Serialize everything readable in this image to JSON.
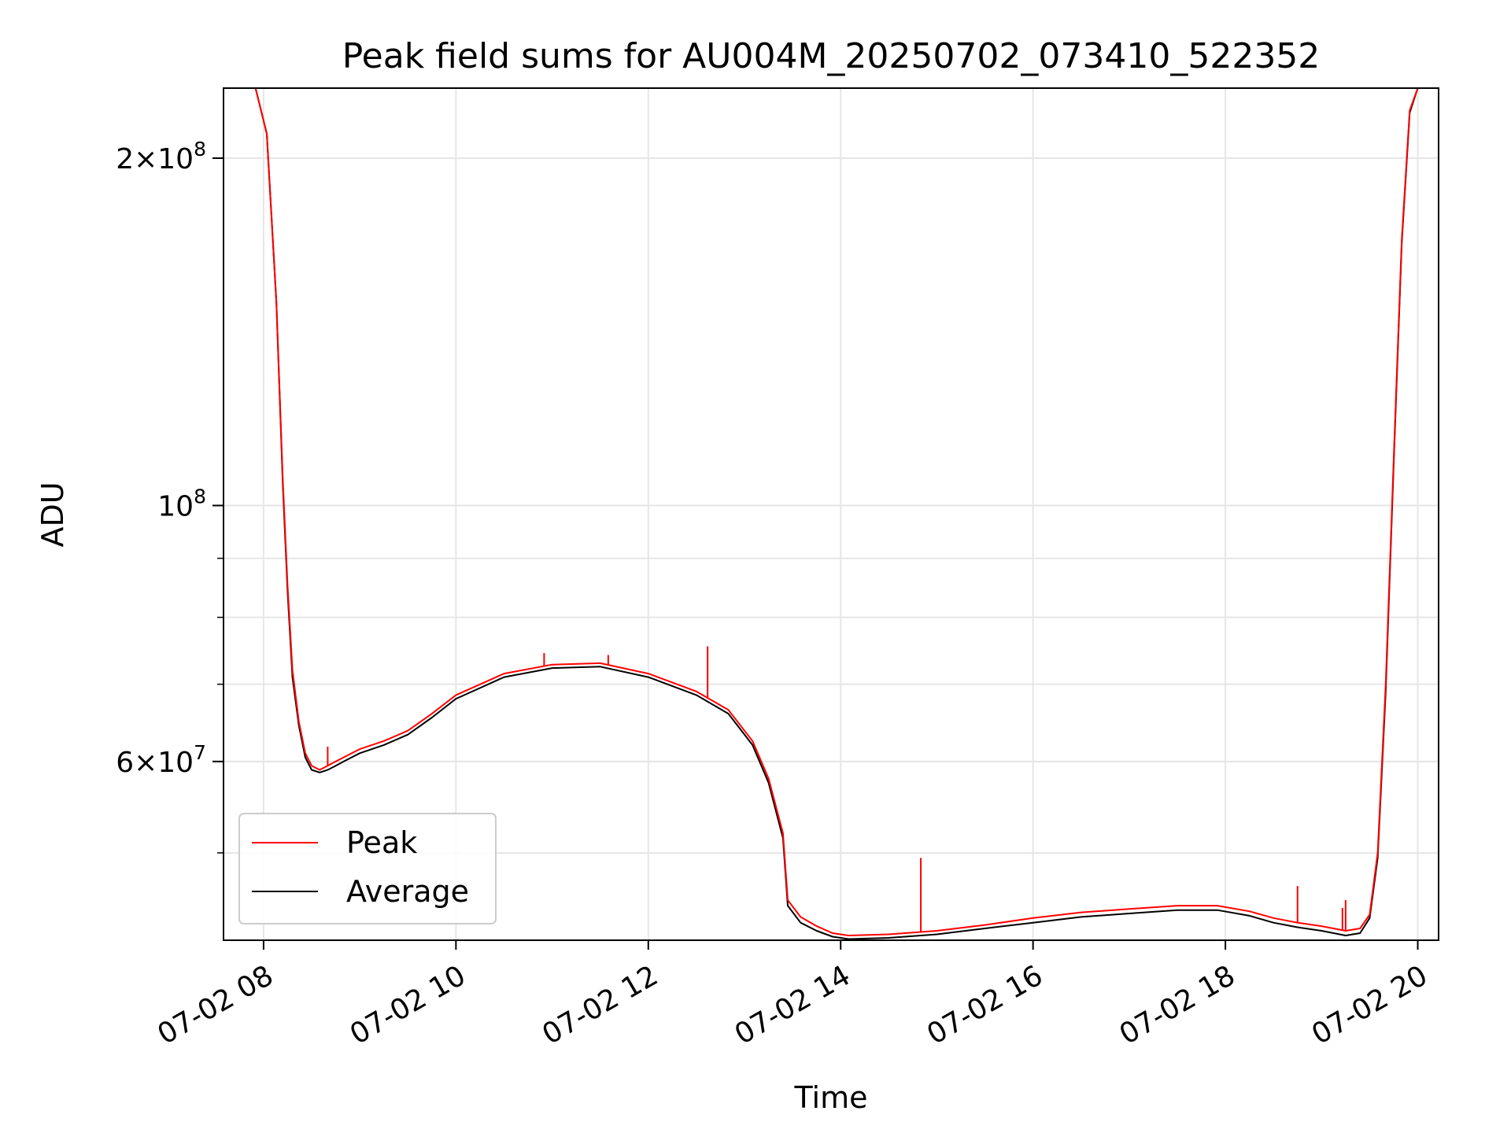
{
  "chart_data": {
    "type": "line",
    "title": "Peak field sums for AU004M_20250702_073410_522352",
    "xlabel": "Time",
    "ylabel": "ADU",
    "x_ticks": [
      {
        "value": "2025-07-02T08:00",
        "label": "07-02 08"
      },
      {
        "value": "2025-07-02T10:00",
        "label": "07-02 10"
      },
      {
        "value": "2025-07-02T12:00",
        "label": "07-02 12"
      },
      {
        "value": "2025-07-02T14:00",
        "label": "07-02 14"
      },
      {
        "value": "2025-07-02T16:00",
        "label": "07-02 16"
      },
      {
        "value": "2025-07-02T18:00",
        "label": "07-02 18"
      },
      {
        "value": "2025-07-02T20:00",
        "label": "07-02 20"
      }
    ],
    "y_ticks": [
      {
        "value": 60000000,
        "base": "6",
        "exp": "7"
      },
      {
        "value": 100000000,
        "base": "",
        "exp": "8"
      },
      {
        "value": 200000000,
        "base": "2",
        "exp": "8"
      }
    ],
    "y_scale": "log",
    "xlim": [
      "2025-07-02T07:35",
      "2025-07-02T20:13"
    ],
    "ylim": [
      42000000,
      230000000
    ],
    "grid": true,
    "legend_position": "lower-left",
    "series": [
      {
        "name": "Peak",
        "color": "#ff0000",
        "x": [
          "2025-07-02T07:44",
          "2025-07-02T07:55",
          "2025-07-02T08:02",
          "2025-07-02T08:08",
          "2025-07-02T08:12",
          "2025-07-02T08:15",
          "2025-07-02T08:18",
          "2025-07-02T08:22",
          "2025-07-02T08:26",
          "2025-07-02T08:30",
          "2025-07-02T08:35",
          "2025-07-02T08:40",
          "2025-07-02T08:45",
          "2025-07-02T08:50",
          "2025-07-02T09:00",
          "2025-07-02T09:15",
          "2025-07-02T09:30",
          "2025-07-02T09:45",
          "2025-07-02T10:00",
          "2025-07-02T10:30",
          "2025-07-02T11:00",
          "2025-07-02T11:30",
          "2025-07-02T12:00",
          "2025-07-02T12:30",
          "2025-07-02T12:50",
          "2025-07-02T13:05",
          "2025-07-02T13:15",
          "2025-07-02T13:24",
          "2025-07-02T13:27",
          "2025-07-02T13:35",
          "2025-07-02T13:45",
          "2025-07-02T13:55",
          "2025-07-02T14:05",
          "2025-07-02T14:30",
          "2025-07-02T15:00",
          "2025-07-02T15:30",
          "2025-07-02T16:00",
          "2025-07-02T16:30",
          "2025-07-02T17:00",
          "2025-07-02T17:30",
          "2025-07-02T17:55",
          "2025-07-02T18:15",
          "2025-07-02T18:30",
          "2025-07-02T18:45",
          "2025-07-02T19:00",
          "2025-07-02T19:15",
          "2025-07-02T19:24",
          "2025-07-02T19:30",
          "2025-07-02T19:35",
          "2025-07-02T19:40",
          "2025-07-02T19:45",
          "2025-07-02T19:50",
          "2025-07-02T19:55",
          "2025-07-02T20:00",
          "2025-07-02T20:05"
        ],
        "y": [
          230000000,
          230000000,
          210000000,
          150000000,
          105000000,
          85000000,
          72000000,
          65000000,
          61000000,
          59500000,
          59000000,
          59500000,
          60000000,
          60500000,
          61500000,
          62500000,
          63800000,
          66000000,
          68500000,
          71500000,
          72800000,
          73000000,
          71500000,
          69000000,
          66500000,
          62500000,
          58000000,
          52000000,
          45500000,
          44000000,
          43200000,
          42600000,
          42400000,
          42500000,
          42800000,
          43300000,
          43900000,
          44400000,
          44700000,
          45000000,
          45000000,
          44500000,
          43900000,
          43500000,
          43200000,
          42800000,
          43000000,
          44200000,
          50000000,
          70000000,
          110000000,
          170000000,
          220000000,
          230000000,
          230000000
        ]
      },
      {
        "name": "Average",
        "color": "#000000",
        "x": [
          "2025-07-02T07:44",
          "2025-07-02T07:55",
          "2025-07-02T08:02",
          "2025-07-02T08:08",
          "2025-07-02T08:12",
          "2025-07-02T08:15",
          "2025-07-02T08:18",
          "2025-07-02T08:22",
          "2025-07-02T08:26",
          "2025-07-02T08:30",
          "2025-07-02T08:35",
          "2025-07-02T08:40",
          "2025-07-02T08:45",
          "2025-07-02T08:50",
          "2025-07-02T09:00",
          "2025-07-02T09:15",
          "2025-07-02T09:30",
          "2025-07-02T09:45",
          "2025-07-02T10:00",
          "2025-07-02T10:30",
          "2025-07-02T11:00",
          "2025-07-02T11:30",
          "2025-07-02T12:00",
          "2025-07-02T12:30",
          "2025-07-02T12:50",
          "2025-07-02T13:05",
          "2025-07-02T13:15",
          "2025-07-02T13:24",
          "2025-07-02T13:27",
          "2025-07-02T13:35",
          "2025-07-02T13:45",
          "2025-07-02T13:55",
          "2025-07-02T14:05",
          "2025-07-02T14:30",
          "2025-07-02T15:00",
          "2025-07-02T15:30",
          "2025-07-02T16:00",
          "2025-07-02T16:30",
          "2025-07-02T17:00",
          "2025-07-02T17:30",
          "2025-07-02T17:55",
          "2025-07-02T18:15",
          "2025-07-02T18:30",
          "2025-07-02T18:45",
          "2025-07-02T19:00",
          "2025-07-02T19:15",
          "2025-07-02T19:24",
          "2025-07-02T19:30",
          "2025-07-02T19:35",
          "2025-07-02T19:40",
          "2025-07-02T19:45",
          "2025-07-02T19:50",
          "2025-07-02T19:55",
          "2025-07-02T20:00",
          "2025-07-02T20:05"
        ],
        "y": [
          230000000,
          230000000,
          210000000,
          150000000,
          104000000,
          84000000,
          71000000,
          64500000,
          60500000,
          59000000,
          58700000,
          59000000,
          59500000,
          60000000,
          61000000,
          62000000,
          63300000,
          65500000,
          68000000,
          71000000,
          72300000,
          72500000,
          71000000,
          68500000,
          66000000,
          62000000,
          57500000,
          51500000,
          45000000,
          43500000,
          42800000,
          42300000,
          42100000,
          42200000,
          42500000,
          43000000,
          43500000,
          44000000,
          44300000,
          44600000,
          44600000,
          44100000,
          43500000,
          43100000,
          42800000,
          42400000,
          42600000,
          43900000,
          49500000,
          69000000,
          109000000,
          169000000,
          219000000,
          230000000,
          230000000
        ]
      }
    ],
    "spikes": [
      {
        "series": "Peak",
        "x": "2025-07-02T08:40",
        "y": 61800000
      },
      {
        "series": "Peak",
        "x": "2025-07-02T10:55",
        "y": 74500000
      },
      {
        "series": "Peak",
        "x": "2025-07-02T11:35",
        "y": 74200000
      },
      {
        "series": "Peak",
        "x": "2025-07-02T12:37",
        "y": 75500000
      },
      {
        "series": "Peak",
        "x": "2025-07-02T14:50",
        "y": 49500000
      },
      {
        "series": "Peak",
        "x": "2025-07-02T18:45",
        "y": 46800000
      },
      {
        "series": "Peak",
        "x": "2025-07-02T19:15",
        "y": 45500000
      },
      {
        "series": "Peak",
        "x": "2025-07-02T19:13",
        "y": 44800000
      }
    ]
  }
}
